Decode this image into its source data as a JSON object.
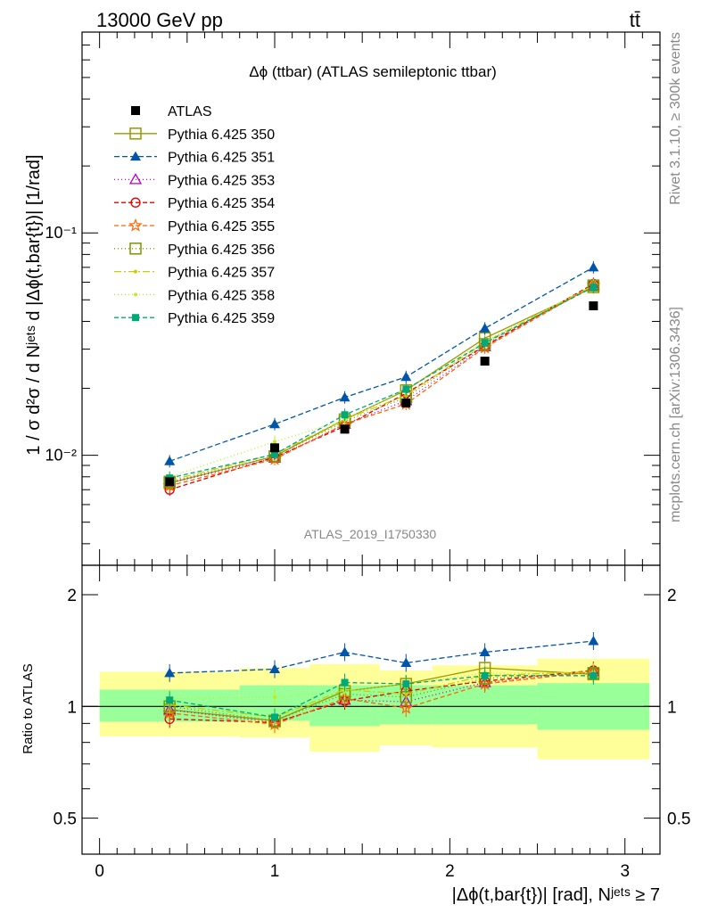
{
  "header": {
    "left": "13000 GeV pp",
    "right": "tt̄"
  },
  "side_labels": {
    "top": "Rivet 3.1.10, ≥ 300k events",
    "bottom": "mcplots.cern.ch [arXiv:1306.3436]"
  },
  "watermark": "ATLAS_2019_I1750330",
  "chart_data": [
    {
      "type": "line",
      "title": "Δϕ (ttbar) (ATLAS semileptonic ttbar)",
      "ylabel": "1 / σ d²σ / d Nʲᵉᵗˢ d |Δϕ(t,bar{t})| [1/rad]",
      "yscale": "log",
      "ylim": [
        0.0032,
        0.8
      ],
      "xlim": [
        -0.1,
        3.2
      ],
      "ytick_labels": [
        "10⁻²",
        "10⁻¹"
      ],
      "ytick_values": [
        0.01,
        0.1
      ],
      "legend_position": "top-left",
      "x": [
        0.4,
        1.0,
        1.4,
        1.75,
        2.2,
        2.82
      ],
      "bins": [
        [
          0,
          0.8
        ],
        [
          0.8,
          1.2
        ],
        [
          1.2,
          1.6
        ],
        [
          1.6,
          1.9
        ],
        [
          1.9,
          2.5
        ],
        [
          2.5,
          3.14
        ]
      ],
      "data": {
        "name": "ATLAS",
        "values": [
          0.0076,
          0.0108,
          0.0131,
          0.0172,
          0.0265,
          0.047
        ]
      },
      "series": [
        {
          "name": "Pythia 6.425 350",
          "color": "#999900",
          "dash": "solid",
          "marker": "square-open",
          "values": [
            0.0075,
            0.0099,
            0.0145,
            0.0196,
            0.0336,
            0.057
          ]
        },
        {
          "name": "Pythia 6.425 351",
          "color": "#0055aa",
          "dash": "6,3",
          "marker": "triangle-filled",
          "values": [
            0.0094,
            0.0138,
            0.0182,
            0.0225,
            0.0372,
            0.07
          ]
        },
        {
          "name": "Pythia 6.425 353",
          "color": "#bb00bb",
          "dash": "1,3",
          "marker": "triangle-open",
          "values": [
            0.0075,
            0.0097,
            0.0138,
            0.0176,
            0.0308,
            0.058
          ]
        },
        {
          "name": "Pythia 6.425 354",
          "color": "#dd0000",
          "dash": "5,3",
          "marker": "circle-open",
          "values": [
            0.007,
            0.0098,
            0.0135,
            0.019,
            0.031,
            0.059
          ]
        },
        {
          "name": "Pythia 6.425 355",
          "color": "#ff6600",
          "dash": "5,3",
          "marker": "star-open",
          "values": [
            0.0073,
            0.0096,
            0.0138,
            0.017,
            0.0305,
            0.058
          ]
        },
        {
          "name": "Pythia 6.425 356",
          "color": "#779900",
          "dash": "1,3",
          "marker": "square-open",
          "values": [
            0.0076,
            0.0099,
            0.0142,
            0.0182,
            0.0316,
            0.058
          ]
        },
        {
          "name": "Pythia 6.425 357",
          "color": "#cccc00",
          "dash": "8,3,2,3",
          "marker": "dot",
          "values": [
            0.0077,
            0.0101,
            0.0145,
            0.0186,
            0.0322,
            0.058
          ]
        },
        {
          "name": "Pythia 6.425 358",
          "color": "#bbee22",
          "dash": "1,3",
          "marker": "dot",
          "values": [
            0.008,
            0.0115,
            0.0144,
            0.0198,
            0.0326,
            0.058
          ]
        },
        {
          "name": "Pythia 6.425 359",
          "color": "#00aa77",
          "dash": "5,3",
          "marker": "square-filled",
          "values": [
            0.0079,
            0.0101,
            0.0152,
            0.0198,
            0.032,
            0.057
          ]
        }
      ]
    },
    {
      "type": "line",
      "ylabel": "Ratio to ATLAS",
      "yscale": "log",
      "ylim": [
        0.4,
        2.4
      ],
      "xlim": [
        -0.1,
        3.2
      ],
      "xlabel": "|Δϕ(t,bar{t})| [rad], Nʲᵉᵗˢ ≥ 7",
      "xtick_values": [
        0,
        1,
        2,
        3
      ],
      "xtick_labels": [
        "0",
        "1",
        "2",
        "3"
      ],
      "ytick_values": [
        0.5,
        1,
        2
      ],
      "ytick_labels": [
        "0.5",
        "1",
        "2"
      ],
      "band_inner": [
        [
          0.91,
          1.11
        ],
        [
          0.915,
          1.14
        ],
        [
          0.885,
          1.14
        ],
        [
          0.895,
          1.14
        ],
        [
          0.895,
          1.14
        ],
        [
          0.865,
          1.155
        ]
      ],
      "band_outer": [
        [
          0.83,
          1.24
        ],
        [
          0.825,
          1.27
        ],
        [
          0.755,
          1.3
        ],
        [
          0.785,
          1.25
        ],
        [
          0.775,
          1.29
        ],
        [
          0.72,
          1.345
        ]
      ],
      "series": [
        {
          "name": "Pythia 6.425 350",
          "values": [
            0.98,
            0.915,
            1.1,
            1.15,
            1.27,
            1.22
          ]
        },
        {
          "name": "Pythia 6.425 351",
          "values": [
            1.23,
            1.26,
            1.4,
            1.31,
            1.4,
            1.5
          ]
        },
        {
          "name": "Pythia 6.425 353",
          "values": [
            0.98,
            0.905,
            1.04,
            1.03,
            1.16,
            1.24
          ]
        },
        {
          "name": "Pythia 6.425 354",
          "values": [
            0.925,
            0.905,
            1.035,
            1.1,
            1.17,
            1.25
          ]
        },
        {
          "name": "Pythia 6.425 355",
          "values": [
            0.96,
            0.895,
            1.05,
            0.99,
            1.15,
            1.24
          ]
        },
        {
          "name": "Pythia 6.425 356",
          "values": [
            1.0,
            0.915,
            1.08,
            1.06,
            1.19,
            1.23
          ]
        },
        {
          "name": "Pythia 6.425 357",
          "values": [
            1.01,
            0.935,
            1.11,
            1.08,
            1.21,
            1.24
          ]
        },
        {
          "name": "Pythia 6.425 358",
          "values": [
            1.05,
            1.06,
            1.1,
            1.15,
            1.23,
            1.23
          ]
        },
        {
          "name": "Pythia 6.425 359",
          "values": [
            1.04,
            0.935,
            1.16,
            1.15,
            1.21,
            1.21
          ]
        }
      ]
    }
  ]
}
